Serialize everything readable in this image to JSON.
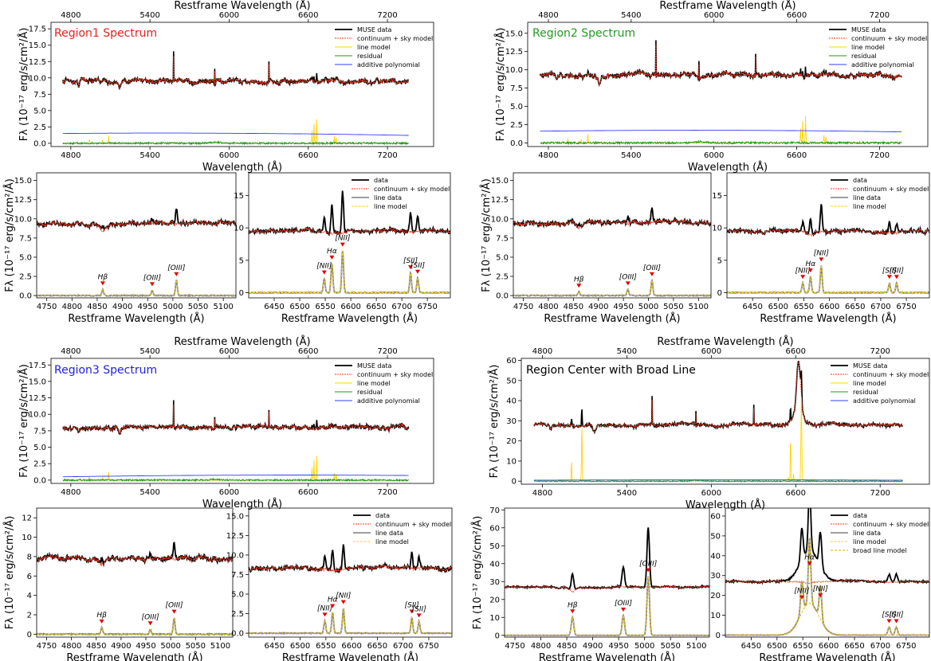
{
  "figure": {
    "name": "MUSE spectral fits for four regions"
  },
  "legends": {
    "main": [
      "MUSE data",
      "continuum + sky model",
      "line model",
      "residual",
      "additive polynomial"
    ],
    "zoom": [
      "data",
      "continuum + sky model",
      "line data",
      "line model"
    ],
    "zoom_broad": [
      "data",
      "continuum + sky model",
      "line data",
      "line model",
      "broad line model"
    ]
  },
  "colors": {
    "data": "#000000",
    "continuum": "#ff3b1f",
    "line_model": "#ffd400",
    "residual": "#1a9a1a",
    "polynomial": "#2f3cff",
    "line_data": "#7f7f7f",
    "broad": "#e6b000",
    "marker": "#e00000",
    "region1": "#e8201e",
    "region2": "#229a22",
    "region3": "#1f1fe0",
    "center": "#000000"
  },
  "labels": {
    "top_axis": "Restframe Wavelength (Å)",
    "bottom_axis_main": "Wavelength (Å)",
    "bottom_axis_zoom": "Restframe Wavelength (Å)",
    "y_axis": "Fλ (10⁻¹⁷ erg/s/cm²/Å)"
  },
  "chart_data": [
    {
      "id": "r1-main",
      "type": "line",
      "title": "Region1 Spectrum",
      "title_color": "#e8201e",
      "xlim": [
        4650,
        7550
      ],
      "ylim": [
        -0.5,
        18.5
      ],
      "xticks": [
        4800,
        5400,
        6000,
        6600,
        7200
      ],
      "yticks": [
        0.0,
        2.5,
        5.0,
        7.5,
        10.0,
        12.5,
        15.0,
        17.5
      ],
      "top_ticks": [
        "4800",
        "5400",
        "6000",
        "6600",
        "7200"
      ],
      "legend": "main",
      "continuum": 9.5,
      "noise": 0.55,
      "polynomial": [
        1.5,
        1.7,
        1.2
      ]
    },
    {
      "id": "r1-blue",
      "type": "line",
      "title": "",
      "xlim": [
        4730,
        5125
      ],
      "ylim": [
        -0.3,
        16.0
      ],
      "xticks": [
        4750,
        4800,
        4850,
        4900,
        4950,
        5000,
        5050,
        5100
      ],
      "yticks": [
        0.0,
        2.5,
        5.0,
        7.5,
        10.0,
        12.5,
        15.0
      ],
      "continuum": 9.4,
      "noise": 0.45,
      "lines": [
        {
          "label": "Hβ",
          "x": 4861,
          "peak": 0.8
        },
        {
          "label": "[OIII]",
          "x": 4959,
          "peak": 0.7
        },
        {
          "label": "[OIII]",
          "x": 5007,
          "peak": 2.0
        }
      ]
    },
    {
      "id": "r1-red",
      "type": "line",
      "title": "",
      "xlim": [
        6400,
        6795
      ],
      "ylim": [
        -0.8,
        18.5
      ],
      "xticks": [
        6450,
        6500,
        6550,
        6600,
        6650,
        6700,
        6750
      ],
      "yticks": [
        0,
        5,
        10,
        15
      ],
      "legend": "zoom",
      "continuum": 9.5,
      "noise": 0.45,
      "lines": [
        {
          "label": "[NII]",
          "x": 6548,
          "peak": 2.2
        },
        {
          "label": "Hα",
          "x": 6563,
          "peak": 4.5
        },
        {
          "label": "[NII]",
          "x": 6584,
          "peak": 6.5
        },
        {
          "label": "[SII]",
          "x": 6717,
          "peak": 3.0
        },
        {
          "label": "[SII]",
          "x": 6731,
          "peak": 2.3
        }
      ]
    },
    {
      "id": "r2-main",
      "type": "line",
      "title": "Region2 Spectrum",
      "title_color": "#229a22",
      "xlim": [
        4650,
        7550
      ],
      "ylim": [
        -0.5,
        16.5
      ],
      "xticks": [
        4800,
        5400,
        6000,
        6600,
        7200
      ],
      "yticks": [
        0.0,
        2.5,
        5.0,
        7.5,
        10.0,
        12.5,
        15.0
      ],
      "top_ticks": [
        "4800",
        "5400",
        "6000",
        "6600",
        "7200"
      ],
      "legend": "main",
      "continuum": 9.3,
      "noise": 0.55,
      "polynomial": [
        1.6,
        1.9,
        1.5
      ]
    },
    {
      "id": "r2-blue",
      "type": "line",
      "title": "",
      "xlim": [
        4730,
        5125
      ],
      "ylim": [
        -0.3,
        16.0
      ],
      "xticks": [
        4750,
        4800,
        4850,
        4900,
        4950,
        5000,
        5050,
        5100
      ],
      "yticks": [
        0.0,
        2.5,
        5.0,
        7.5,
        10.0,
        12.5,
        15.0
      ],
      "continuum": 9.5,
      "noise": 0.45,
      "lines": [
        {
          "label": "Hβ",
          "x": 4861,
          "peak": 0.5
        },
        {
          "label": "[OIII]",
          "x": 4959,
          "peak": 0.8
        },
        {
          "label": "[OIII]",
          "x": 5007,
          "peak": 2.0
        }
      ]
    },
    {
      "id": "r2-red",
      "type": "line",
      "title": "",
      "xlim": [
        6400,
        6795
      ],
      "ylim": [
        -0.8,
        18.5
      ],
      "xticks": [
        6450,
        6500,
        6550,
        6600,
        6650,
        6700,
        6750
      ],
      "yticks": [
        0,
        5,
        10,
        15
      ],
      "legend": "zoom",
      "continuum": 9.5,
      "noise": 0.45,
      "lines": [
        {
          "label": "[NII]",
          "x": 6548,
          "peak": 1.5
        },
        {
          "label": "Hα",
          "x": 6563,
          "peak": 2.5
        },
        {
          "label": "[NII]",
          "x": 6584,
          "peak": 4.2
        },
        {
          "label": "[SII]",
          "x": 6717,
          "peak": 1.5
        },
        {
          "label": "[SII]",
          "x": 6731,
          "peak": 1.5
        }
      ]
    },
    {
      "id": "r3-main",
      "type": "line",
      "title": "Region3 Spectrum",
      "title_color": "#1f1fe0",
      "xlim": [
        4650,
        7550
      ],
      "ylim": [
        -0.5,
        18.5
      ],
      "xticks": [
        4800,
        5400,
        6000,
        6600,
        7200
      ],
      "yticks": [
        0.0,
        2.5,
        5.0,
        7.5,
        10.0,
        12.5,
        15.0,
        17.5
      ],
      "top_ticks": [
        "4800",
        "5400",
        "6000",
        "6600",
        "7200"
      ],
      "legend": "main",
      "continuum": 8.0,
      "noise": 0.5,
      "polynomial": [
        0.5,
        0.9,
        0.7
      ]
    },
    {
      "id": "r3-blue",
      "type": "line",
      "title": "",
      "xlim": [
        4730,
        5125
      ],
      "ylim": [
        -0.3,
        13.0
      ],
      "xticks": [
        4750,
        4800,
        4850,
        4900,
        4950,
        5000,
        5050,
        5100
      ],
      "yticks": [
        0,
        2,
        4,
        6,
        8,
        10,
        12
      ],
      "continuum": 7.8,
      "noise": 0.4,
      "lines": [
        {
          "label": "Hβ",
          "x": 4861,
          "peak": 0.7
        },
        {
          "label": "[OIII]",
          "x": 4959,
          "peak": 0.5
        },
        {
          "label": "[OIII]",
          "x": 5007,
          "peak": 1.7
        }
      ]
    },
    {
      "id": "r3-red",
      "type": "line",
      "title": "",
      "xlim": [
        6400,
        6795
      ],
      "ylim": [
        -0.5,
        16.0
      ],
      "xticks": [
        6450,
        6500,
        6550,
        6600,
        6650,
        6700,
        6750
      ],
      "yticks": [
        0.0,
        2.5,
        5.0,
        7.5,
        10.0,
        12.5,
        15.0
      ],
      "legend": "zoom",
      "continuum": 8.3,
      "noise": 0.4,
      "lines": [
        {
          "label": "[NII]",
          "x": 6548,
          "peak": 1.6
        },
        {
          "label": "Hα",
          "x": 6563,
          "peak": 2.7
        },
        {
          "label": "[NII]",
          "x": 6584,
          "peak": 3.2
        },
        {
          "label": "[SII]",
          "x": 6717,
          "peak": 2.0
        },
        {
          "label": "[SII]",
          "x": 6731,
          "peak": 1.5
        }
      ]
    },
    {
      "id": "rc-main",
      "type": "line",
      "title": "Region Center with Broad Line",
      "title_color": "#000000",
      "xlim": [
        4650,
        7550
      ],
      "ylim": [
        -1.5,
        61
      ],
      "xticks": [
        4800,
        5400,
        6000,
        6600,
        7200
      ],
      "yticks": [
        0,
        10,
        20,
        30,
        40,
        50,
        60
      ],
      "top_ticks": [
        "4800",
        "5400",
        "6000",
        "6600",
        "7200"
      ],
      "legend": "main",
      "continuum": 28,
      "noise": 1.2,
      "polynomial": [
        0.5,
        0.8,
        0.5
      ]
    },
    {
      "id": "rc-blue",
      "type": "line",
      "title": "",
      "xlim": [
        4730,
        5125
      ],
      "ylim": [
        -1,
        71
      ],
      "xticks": [
        4750,
        4800,
        4850,
        4900,
        4950,
        5000,
        5050,
        5100
      ],
      "yticks": [
        0,
        10,
        20,
        30,
        40,
        50,
        60,
        70
      ],
      "continuum": 27,
      "noise": 0.7,
      "lines": [
        {
          "label": "Hβ",
          "x": 4861,
          "peak": 10
        },
        {
          "label": "[OIII]",
          "x": 4959,
          "peak": 11
        },
        {
          "label": "[OIII]",
          "x": 5007,
          "peak": 33
        }
      ]
    },
    {
      "id": "rc-red",
      "type": "line",
      "title": "",
      "xlim": [
        6400,
        6795
      ],
      "ylim": [
        -1,
        64
      ],
      "xticks": [
        6450,
        6500,
        6550,
        6600,
        6650,
        6700,
        6750
      ],
      "yticks": [
        0,
        10,
        20,
        30,
        40,
        50,
        60
      ],
      "legend": "zoom_broad",
      "continuum": 27,
      "noise": 0.7,
      "lines": [
        {
          "label": "[NII]",
          "x": 6548,
          "peak": 16
        },
        {
          "label": "Hα",
          "x": 6563,
          "peak": 33
        },
        {
          "label": "[NII]",
          "x": 6584,
          "peak": 17
        },
        {
          "label": "[SII]",
          "x": 6717,
          "peak": 4
        },
        {
          "label": "[SII]",
          "x": 6731,
          "peak": 4
        }
      ]
    }
  ]
}
